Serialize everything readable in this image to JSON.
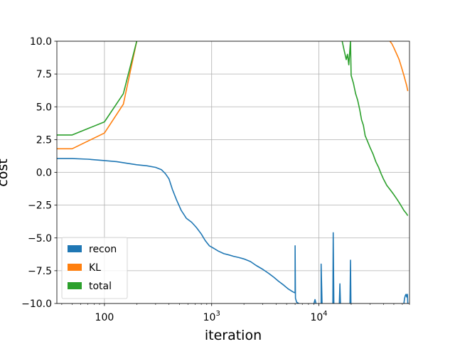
{
  "chart_data": {
    "type": "line",
    "title": "",
    "xlabel": "iteration",
    "ylabel": "cost",
    "xscale": "log",
    "xlim": [
      36,
      70000
    ],
    "ylim": [
      -10,
      10
    ],
    "grid": true,
    "legend": {
      "placement": "lower-left",
      "patch_style": "filled-rectangle"
    },
    "x_ticks": [
      {
        "value": 100,
        "base": "100",
        "exp": ""
      },
      {
        "value": 1000,
        "base": "10",
        "exp": "3"
      },
      {
        "value": 10000,
        "base": "10",
        "exp": "4"
      }
    ],
    "y_ticks": [
      {
        "value": 10,
        "label": "10.0"
      },
      {
        "value": 7.5,
        "label": "7.5"
      },
      {
        "value": 5,
        "label": "5.0"
      },
      {
        "value": 2.5,
        "label": "2.5"
      },
      {
        "value": 0,
        "label": "0.0"
      },
      {
        "value": -2.5,
        "label": "−2.5"
      },
      {
        "value": -5,
        "label": "−5.0"
      },
      {
        "value": -7.5,
        "label": "−7.5"
      },
      {
        "value": -10,
        "label": "−10.0"
      }
    ],
    "series": [
      {
        "name": "recon",
        "color": "#1f77b4",
        "segments": [
          [
            [
              36,
              1.05
            ],
            [
              50,
              1.05
            ],
            [
              70,
              1.0
            ],
            [
              100,
              0.9
            ],
            [
              130,
              0.82
            ],
            [
              160,
              0.7
            ],
            [
              200,
              0.58
            ],
            [
              250,
              0.5
            ],
            [
              300,
              0.38
            ],
            [
              340,
              0.2
            ],
            [
              370,
              -0.1
            ],
            [
              400,
              -0.5
            ],
            [
              430,
              -1.3
            ],
            [
              470,
              -2.1
            ],
            [
              520,
              -2.9
            ],
            [
              580,
              -3.5
            ],
            [
              650,
              -3.8
            ],
            [
              720,
              -4.2
            ],
            [
              800,
              -4.7
            ],
            [
              870,
              -5.2
            ],
            [
              950,
              -5.6
            ],
            [
              1050,
              -5.8
            ],
            [
              1150,
              -6.0
            ],
            [
              1300,
              -6.2
            ],
            [
              1450,
              -6.3
            ],
            [
              1600,
              -6.4
            ],
            [
              1800,
              -6.5
            ],
            [
              2000,
              -6.6
            ],
            [
              2300,
              -6.8
            ],
            [
              2600,
              -7.1
            ],
            [
              3000,
              -7.4
            ],
            [
              3400,
              -7.7
            ],
            [
              3800,
              -8.0
            ],
            [
              4200,
              -8.3
            ],
            [
              4700,
              -8.6
            ],
            [
              5200,
              -8.9
            ],
            [
              5700,
              -9.1
            ],
            [
              6000,
              -9.2
            ],
            [
              6000,
              -5.6
            ],
            [
              6050,
              -9.6
            ],
            [
              6200,
              -9.9
            ],
            [
              6500,
              -10.0
            ]
          ],
          [
            [
              10500,
              -10.0
            ],
            [
              10500,
              -7.0
            ],
            [
              10700,
              -10.0
            ]
          ],
          [
            [
              13500,
              -10.0
            ],
            [
              13600,
              -4.6
            ],
            [
              13800,
              -10.0
            ]
          ],
          [
            [
              15500,
              -10.0
            ],
            [
              15700,
              -8.5
            ],
            [
              15900,
              -10.0
            ]
          ],
          [
            [
              19500,
              -10.0
            ],
            [
              19700,
              -6.7
            ],
            [
              19900,
              -10.0
            ]
          ],
          [
            [
              9000,
              -10.0
            ],
            [
              9200,
              -9.7
            ],
            [
              9400,
              -10.0
            ]
          ],
          [
            [
              62000,
              -10.0
            ],
            [
              63000,
              -9.6
            ],
            [
              64000,
              -9.4
            ],
            [
              65000,
              -9.3
            ],
            [
              66000,
              -9.5
            ],
            [
              67000,
              -9.3
            ],
            [
              67500,
              -10.0
            ]
          ]
        ]
      },
      {
        "name": "KL",
        "color": "#ff7f0e",
        "segments": [
          [
            [
              36,
              1.8
            ],
            [
              50,
              1.8
            ],
            [
              100,
              3.0
            ],
            [
              150,
              5.2
            ],
            [
              200,
              10.0
            ]
          ],
          [
            [
              46000,
              10.0
            ],
            [
              48000,
              9.8
            ],
            [
              50000,
              9.5
            ],
            [
              52000,
              9.2
            ],
            [
              54000,
              8.9
            ],
            [
              56000,
              8.6
            ],
            [
              58000,
              8.2
            ],
            [
              60000,
              7.8
            ],
            [
              62000,
              7.4
            ],
            [
              64000,
              7.0
            ],
            [
              66000,
              6.6
            ],
            [
              67500,
              6.2
            ]
          ]
        ]
      },
      {
        "name": "total",
        "color": "#2ca02c",
        "segments": [
          [
            [
              36,
              2.85
            ],
            [
              50,
              2.85
            ],
            [
              100,
              3.85
            ],
            [
              150,
              6.0
            ],
            [
              200,
              10.0
            ]
          ],
          [
            [
              16500,
              10.0
            ],
            [
              17200,
              9.3
            ],
            [
              18000,
              8.6
            ],
            [
              18500,
              9.0
            ],
            [
              19000,
              8.2
            ],
            [
              19700,
              10.0
            ],
            [
              20000,
              7.4
            ],
            [
              21000,
              6.8
            ],
            [
              22000,
              6.0
            ],
            [
              23000,
              5.5
            ],
            [
              24000,
              4.8
            ],
            [
              25000,
              4.0
            ],
            [
              26000,
              3.6
            ],
            [
              27000,
              2.8
            ],
            [
              28000,
              2.5
            ],
            [
              30000,
              1.9
            ],
            [
              32000,
              1.4
            ],
            [
              34000,
              0.8
            ],
            [
              36000,
              0.4
            ],
            [
              38000,
              -0.1
            ],
            [
              40000,
              -0.5
            ],
            [
              43000,
              -1.0
            ],
            [
              46000,
              -1.3
            ],
            [
              50000,
              -1.7
            ],
            [
              54000,
              -2.1
            ],
            [
              58000,
              -2.5
            ],
            [
              62000,
              -2.9
            ],
            [
              65000,
              -3.1
            ],
            [
              67500,
              -3.3
            ]
          ]
        ]
      }
    ]
  }
}
